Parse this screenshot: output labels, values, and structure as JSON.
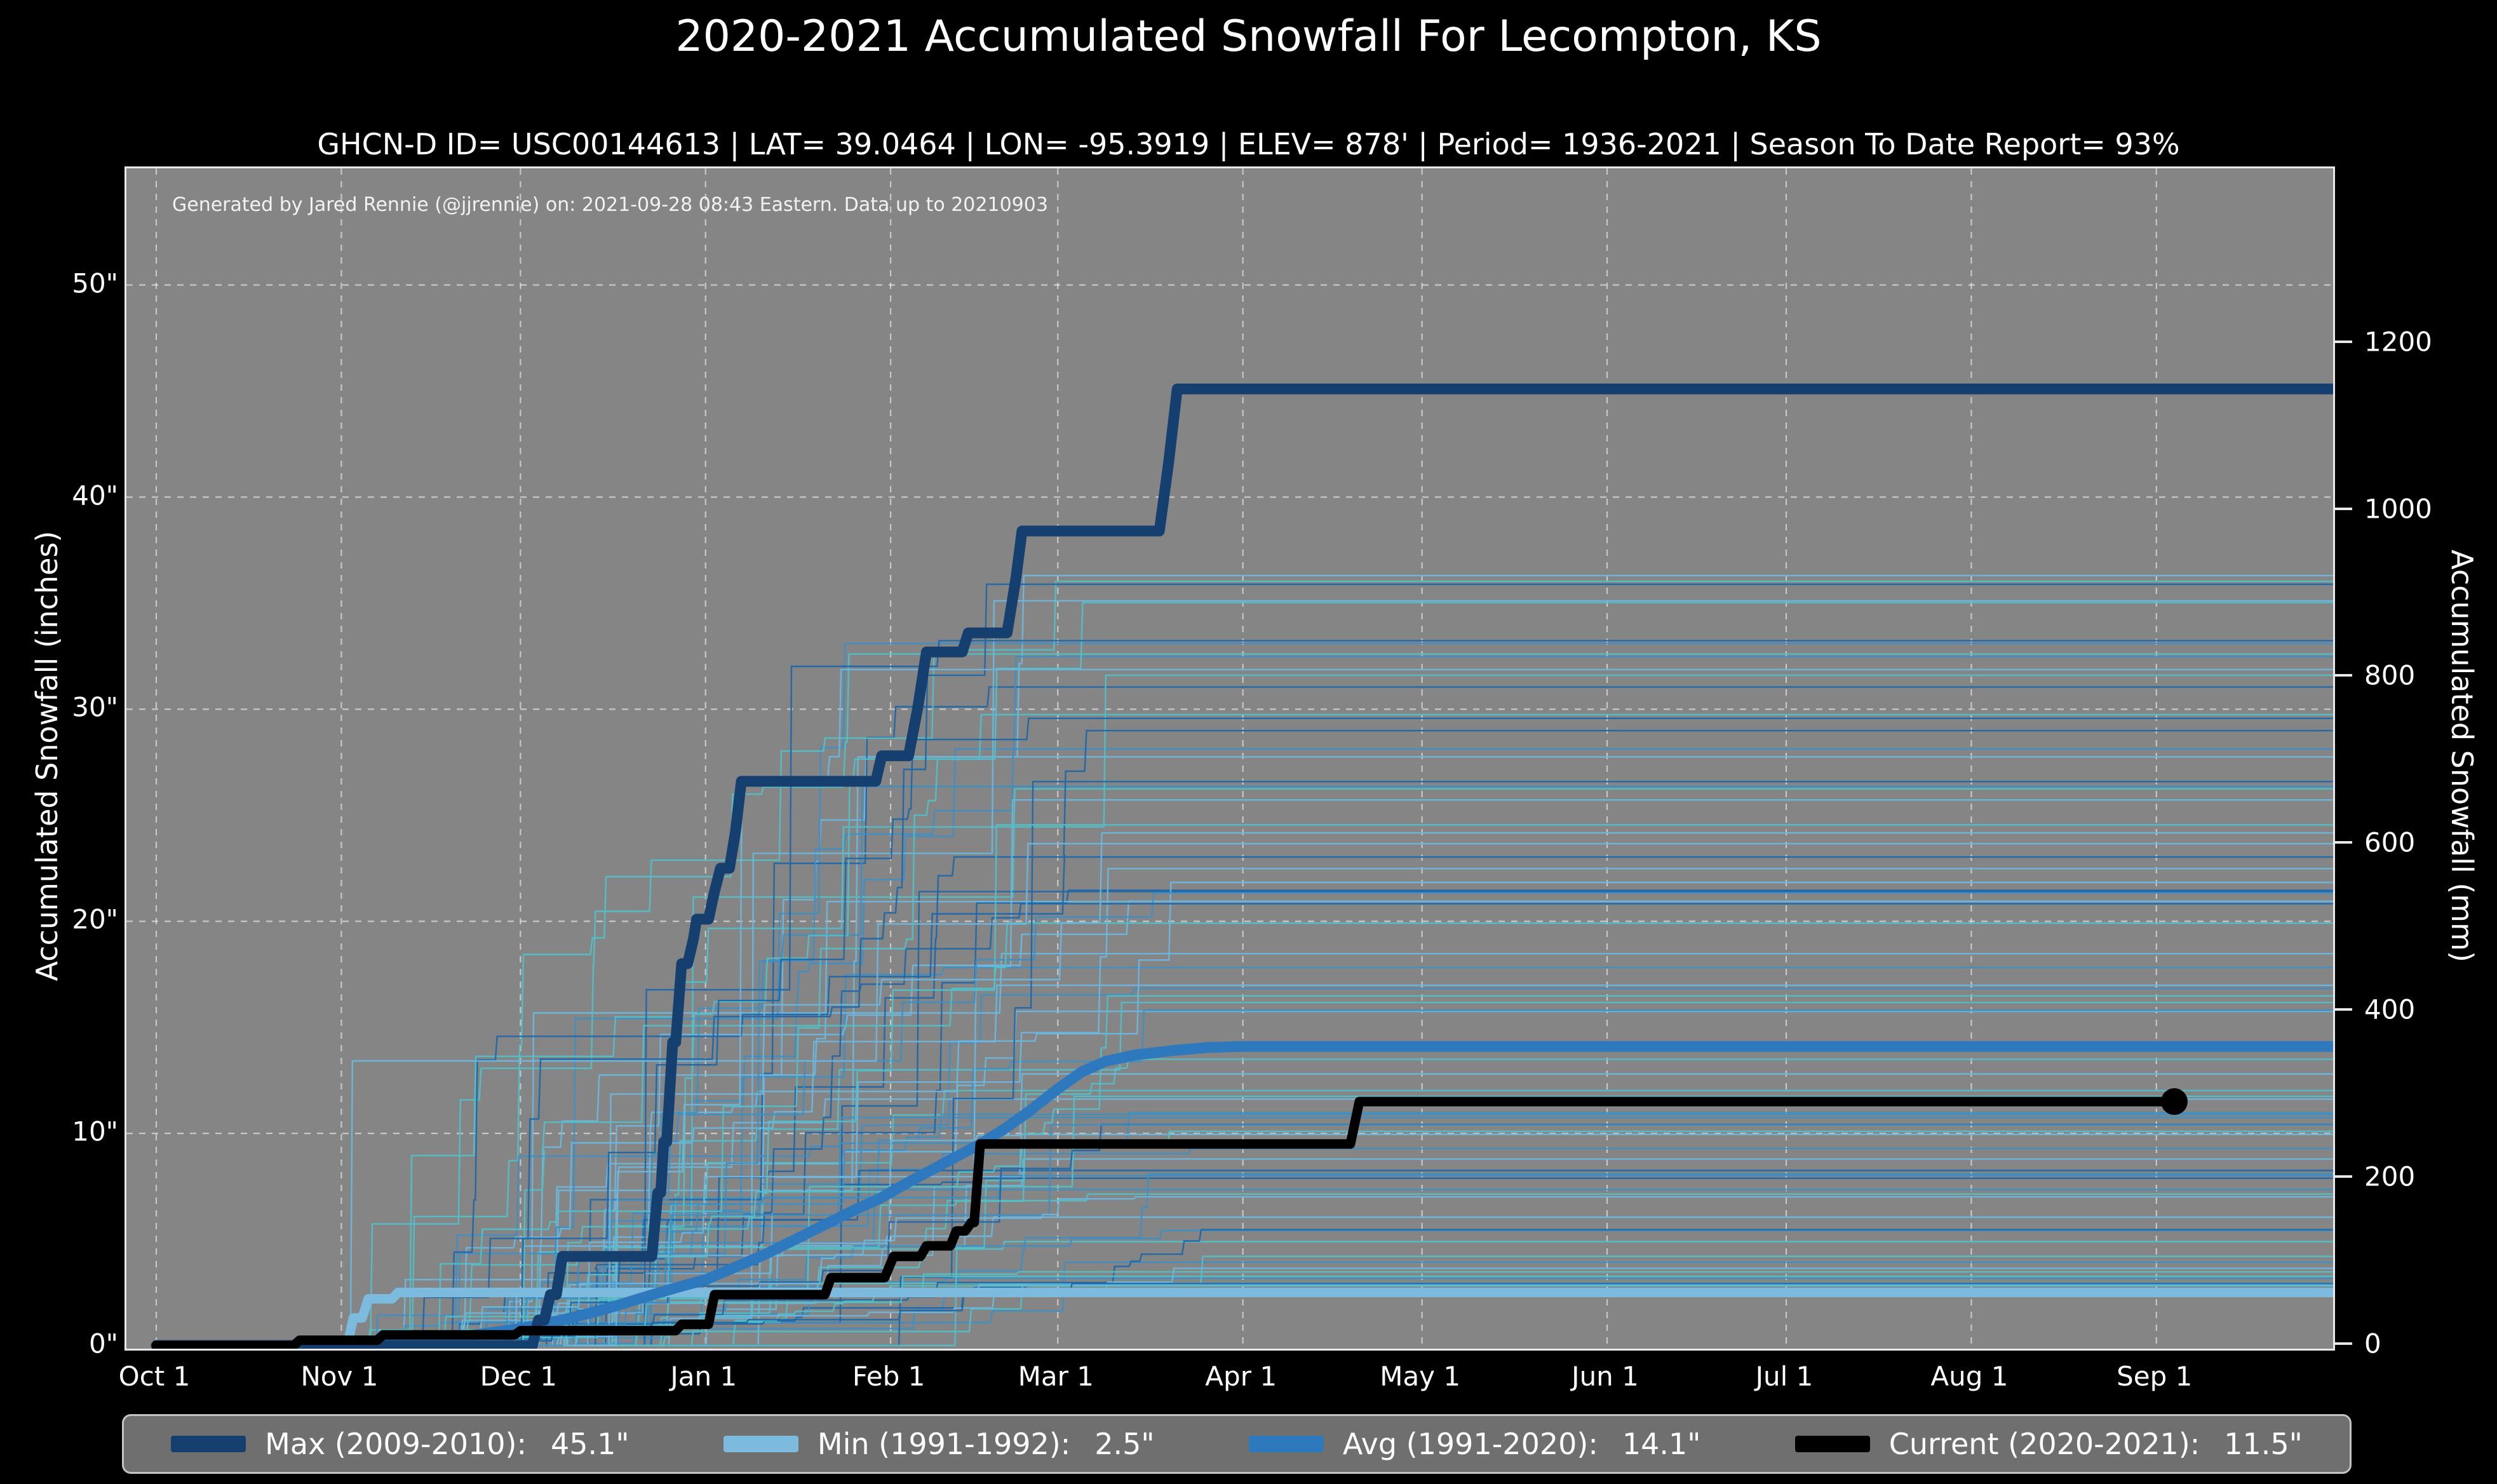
{
  "header": {
    "title": "2020-2021 Accumulated Snowfall For Lecompton, KS",
    "subtitle": "GHCN-D ID= USC00144613 | LAT= 39.0464 | LON= -95.3919 | ELEV= 878' | Period= 1936-2021 | Season To Date Report= 93%"
  },
  "chart_data": {
    "type": "line",
    "title": "2020-2021 Accumulated Snowfall For Lecompton, KS",
    "annotation": "Generated by Jared Rennie (@jjrennie) on: 2021-09-28 08:43 Eastern. Data up to 20210903",
    "plot_background": "#858585",
    "grid": {
      "color": "#ffffff",
      "opacity": 0.55,
      "dash": "10 10",
      "width": 2.2
    },
    "x_axis": {
      "unit": "days since Oct 1",
      "range_days": [
        -5,
        364.6
      ],
      "tick_labels": [
        "Oct 1",
        "Nov 1",
        "Dec 1",
        "Jan 1",
        "Feb 1",
        "Mar 1",
        "Apr 1",
        "May 1",
        "Jun 1",
        "Jul 1",
        "Aug 1",
        "Sep 1"
      ],
      "tick_days": [
        0,
        31,
        61,
        92,
        123,
        151,
        182,
        212,
        243,
        273,
        304,
        335
      ]
    },
    "y_axis_left": {
      "label": "Accumulated Snowfall (inches)",
      "tick_labels": [
        "0\"",
        "10\"",
        "20\"",
        "30\"",
        "40\"",
        "50\""
      ],
      "tick_values": [
        0,
        10,
        20,
        30,
        40,
        50
      ],
      "range": [
        0,
        55.5
      ]
    },
    "y_axis_right": {
      "label": "Accumulated Snowfall (mm)",
      "tick_labels": [
        "0",
        "200",
        "400",
        "600",
        "800",
        "1000",
        "1200"
      ],
      "tick_values_mm": [
        0,
        200,
        400,
        600,
        800,
        1000,
        1200
      ],
      "mm_per_inch": 25.4
    },
    "series": [
      {
        "name": "Max (2009-2010)",
        "final_value_label": "45.1\"",
        "final_value_in": 45.1,
        "color": "#153f6f",
        "width": 17,
        "points": [
          [
            0,
            0
          ],
          [
            63,
            0
          ],
          [
            64,
            1.2
          ],
          [
            65,
            1.2
          ],
          [
            66,
            2.4
          ],
          [
            67,
            2.4
          ],
          [
            68,
            4.2
          ],
          [
            83,
            4.2
          ],
          [
            84,
            7.2
          ],
          [
            84.5,
            7.2
          ],
          [
            85,
            9.6
          ],
          [
            85.5,
            9.6
          ],
          [
            86.5,
            14.3
          ],
          [
            87,
            14.3
          ],
          [
            88,
            18.0
          ],
          [
            89,
            18.0
          ],
          [
            90,
            19.2
          ],
          [
            90.5,
            20.1
          ],
          [
            92.5,
            20.1
          ],
          [
            93.5,
            21.4
          ],
          [
            94.5,
            22.5
          ],
          [
            96,
            22.5
          ],
          [
            97,
            24.2
          ],
          [
            98,
            26.6
          ],
          [
            120.5,
            26.6
          ],
          [
            121.5,
            27.8
          ],
          [
            126,
            27.8
          ],
          [
            127.5,
            30.0
          ],
          [
            129,
            32.7
          ],
          [
            135,
            32.7
          ],
          [
            136,
            33.6
          ],
          [
            142.5,
            33.6
          ],
          [
            144,
            36.2
          ],
          [
            145,
            38.4
          ],
          [
            168,
            38.4
          ],
          [
            169.5,
            41.5
          ],
          [
            171,
            45.1
          ],
          [
            364.6,
            45.1
          ]
        ]
      },
      {
        "name": "Min (1991-1992)",
        "final_value_label": "2.5\"",
        "final_value_in": 2.5,
        "color": "#7cbade",
        "width": 15,
        "points": [
          [
            0,
            0
          ],
          [
            32,
            0
          ],
          [
            33,
            1.3
          ],
          [
            34.5,
            1.3
          ],
          [
            35.5,
            2.2
          ],
          [
            39.5,
            2.2
          ],
          [
            40.5,
            2.5
          ],
          [
            364.6,
            2.5
          ]
        ]
      },
      {
        "name": "Avg (1991-2020)",
        "final_value_label": "14.1\"",
        "final_value_in": 14.1,
        "color": "#2e79bd",
        "width": 17,
        "points": [
          [
            22,
            0
          ],
          [
            32,
            0.05
          ],
          [
            42,
            0.2
          ],
          [
            52,
            0.45
          ],
          [
            61,
            0.8
          ],
          [
            68,
            1.2
          ],
          [
            75,
            1.7
          ],
          [
            82,
            2.3
          ],
          [
            88,
            2.8
          ],
          [
            92,
            3.1
          ],
          [
            97,
            3.7
          ],
          [
            102,
            4.3
          ],
          [
            107,
            5.0
          ],
          [
            112,
            5.7
          ],
          [
            117,
            6.4
          ],
          [
            121,
            6.9
          ],
          [
            126,
            7.7
          ],
          [
            130,
            8.3
          ],
          [
            134,
            8.9
          ],
          [
            138,
            9.5
          ],
          [
            142,
            10.2
          ],
          [
            146,
            11.0
          ],
          [
            151,
            12.1
          ],
          [
            155,
            12.9
          ],
          [
            159,
            13.4
          ],
          [
            164,
            13.7
          ],
          [
            170,
            13.9
          ],
          [
            176,
            14.05
          ],
          [
            182,
            14.1
          ],
          [
            364.6,
            14.1
          ]
        ]
      },
      {
        "name": "Current (2020-2021)",
        "final_value_label": "11.5\"",
        "final_value_in": 11.5,
        "color": "#000000",
        "width": 15,
        "end_marker": {
          "day": 338,
          "value": 11.5,
          "radius": 21
        },
        "points": [
          [
            0,
            0
          ],
          [
            23,
            0
          ],
          [
            24,
            0.25
          ],
          [
            37,
            0.25
          ],
          [
            38,
            0.5
          ],
          [
            60,
            0.5
          ],
          [
            61,
            0.7
          ],
          [
            87,
            0.7
          ],
          [
            88,
            1.0
          ],
          [
            92.5,
            1.0
          ],
          [
            93.5,
            2.4
          ],
          [
            112,
            2.4
          ],
          [
            113,
            3.2
          ],
          [
            122,
            3.2
          ],
          [
            123.5,
            4.2
          ],
          [
            128,
            4.2
          ],
          [
            129,
            4.7
          ],
          [
            133,
            4.7
          ],
          [
            134,
            5.4
          ],
          [
            135.5,
            5.4
          ],
          [
            136.5,
            5.8
          ],
          [
            137,
            5.8
          ],
          [
            138,
            9.5
          ],
          [
            200,
            9.5
          ],
          [
            201.5,
            11.5
          ],
          [
            338,
            11.5
          ]
        ]
      }
    ],
    "background_seasons": {
      "description": "Thin step lines for each season 1936-2021 (not individually labeled in the image; recreated procedurally)",
      "count": 80,
      "seed": 11,
      "line_width": 2.4,
      "opacity": 0.95,
      "palette": [
        "#1f67a8",
        "#3d8ec4",
        "#6db6dd",
        "#52bfc7"
      ],
      "total_range_in": [
        2.5,
        36.3
      ],
      "start_day_range": [
        28,
        76
      ],
      "last_event_day_range": [
        140,
        180
      ]
    }
  },
  "legend": {
    "items": [
      {
        "label": "Max (2009-2010):",
        "value": "45.1\"",
        "color": "#153f6f"
      },
      {
        "label": "Min (1991-1992):",
        "value": "2.5\"",
        "color": "#7cbade"
      },
      {
        "label": "Avg (1991-2020):",
        "value": "14.1\"",
        "color": "#2e79bd"
      },
      {
        "label": "Current (2020-2021):",
        "value": "11.5\"",
        "color": "#000000"
      }
    ]
  }
}
